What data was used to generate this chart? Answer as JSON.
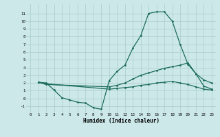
{
  "xlabel": "Humidex (Indice chaleur)",
  "background_color": "#cce8e8",
  "grid_color": "#aacccc",
  "line_color": "#1a6b5a",
  "xlim": [
    -0.5,
    23.5
  ],
  "ylim": [
    -1.8,
    12.2
  ],
  "xticks": [
    0,
    1,
    2,
    3,
    4,
    5,
    6,
    7,
    8,
    9,
    10,
    11,
    12,
    13,
    14,
    15,
    16,
    17,
    18,
    19,
    20,
    21,
    22,
    23
  ],
  "yticks": [
    -1,
    0,
    1,
    2,
    3,
    4,
    5,
    6,
    7,
    8,
    9,
    10,
    11
  ],
  "line1_x": [
    1,
    2,
    3,
    4,
    5,
    6,
    7,
    8,
    9,
    10,
    11,
    12,
    13,
    14,
    15,
    16,
    17,
    18,
    19,
    20,
    21,
    22,
    23
  ],
  "line1_y": [
    2.1,
    2.0,
    1.1,
    0.1,
    -0.2,
    -0.5,
    -0.6,
    -1.2,
    -1.4,
    2.3,
    3.5,
    4.3,
    6.5,
    8.1,
    11.0,
    11.2,
    11.2,
    10.0,
    7.0,
    4.4,
    3.2,
    2.4,
    2.0
  ],
  "line2_x": [
    1,
    2,
    10,
    11,
    12,
    13,
    14,
    15,
    16,
    17,
    18,
    19,
    20,
    21,
    22,
    23
  ],
  "line2_y": [
    2.1,
    1.8,
    1.5,
    1.7,
    2.0,
    2.5,
    3.0,
    3.3,
    3.6,
    3.9,
    4.1,
    4.3,
    4.6,
    3.2,
    1.6,
    1.2
  ],
  "line3_x": [
    1,
    2,
    10,
    11,
    12,
    13,
    14,
    15,
    16,
    17,
    18,
    19,
    20,
    21,
    22,
    23
  ],
  "line3_y": [
    2.1,
    1.9,
    1.2,
    1.3,
    1.4,
    1.5,
    1.7,
    1.8,
    2.0,
    2.1,
    2.2,
    2.0,
    1.8,
    1.5,
    1.2,
    1.1
  ]
}
